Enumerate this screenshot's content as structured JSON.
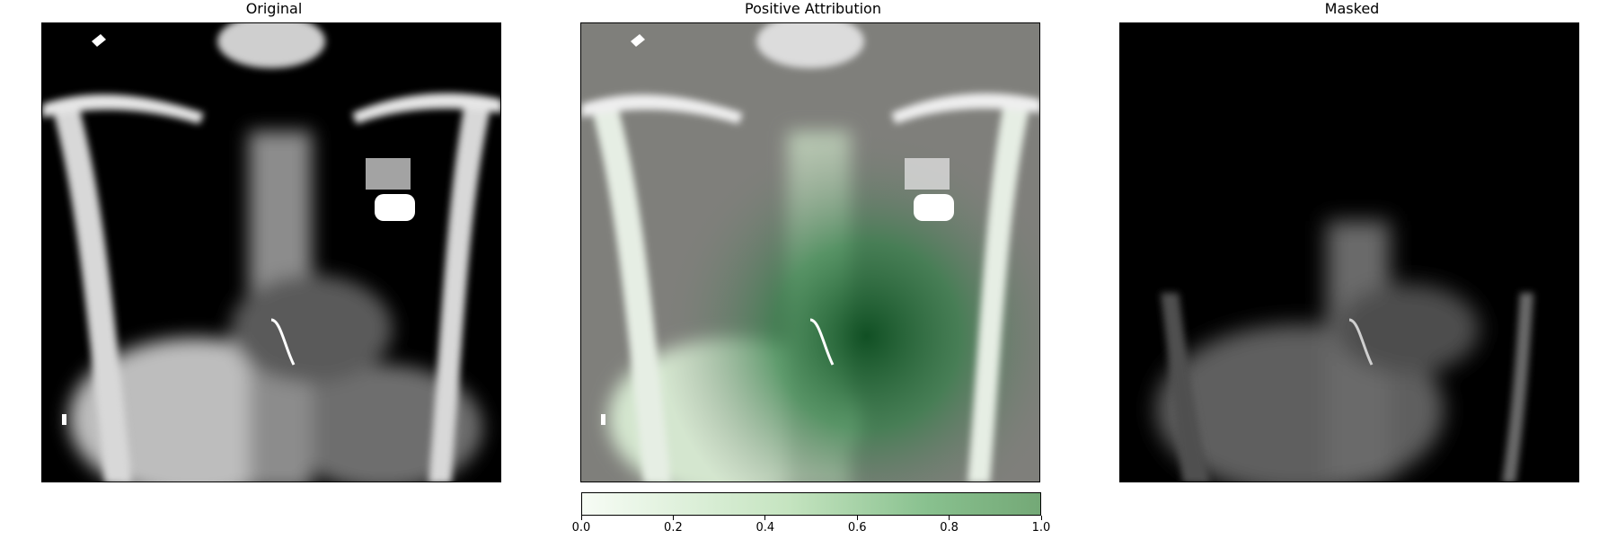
{
  "panels": {
    "original_title": "Original",
    "attribution_title": "Positive Attribution",
    "masked_title": "Masked"
  },
  "colorbar": {
    "min": 0.0,
    "max": 1.0,
    "ticks": [
      "0.0",
      "0.2",
      "0.4",
      "0.6",
      "0.8",
      "1.0"
    ],
    "colormap": "Greens",
    "color_low": "#f7fcf5",
    "color_high": "#2e7d32"
  },
  "colors": {
    "xray_background": "#000000",
    "attribution_background": "#7f7f7b"
  }
}
